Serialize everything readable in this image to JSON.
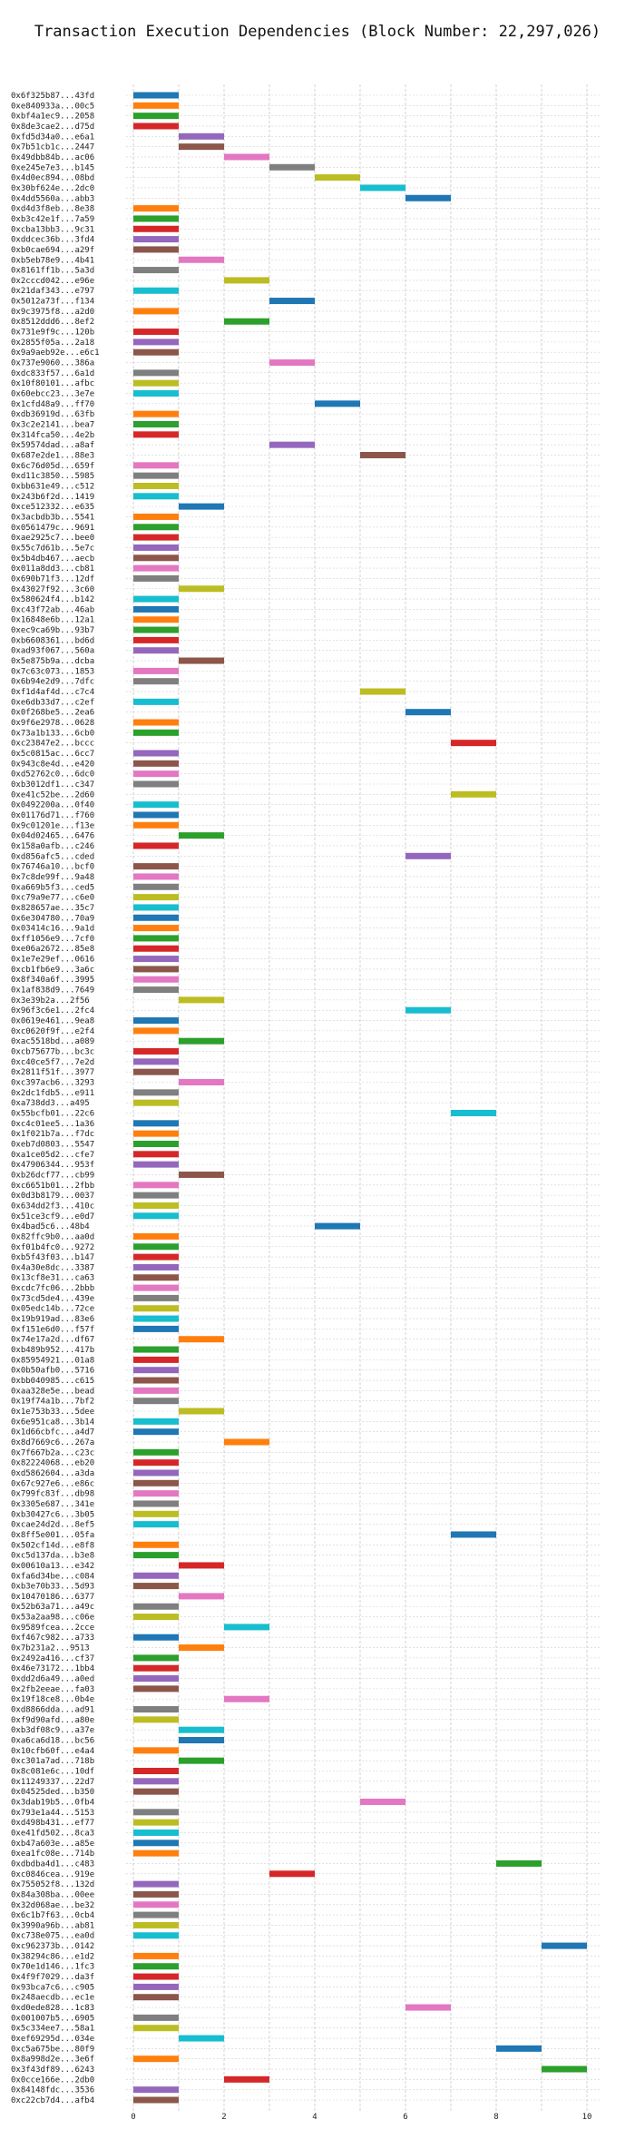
{
  "chart_data": {
    "type": "bar",
    "title": "Transaction Execution Dependencies (Block Number: 22,297,026)",
    "xlim": [
      0,
      10.3
    ],
    "xticks": [
      0,
      2,
      4,
      6,
      8,
      10
    ],
    "grid": true,
    "palette": [
      "#1f77b4",
      "#ff7f0e",
      "#2ca02c",
      "#d62728",
      "#9467bd",
      "#8c564b",
      "#e377c2",
      "#7f7f7f",
      "#bcbd22",
      "#17becf"
    ],
    "bars": [
      {
        "tx": "0x6f325b87...43fd",
        "start": 0,
        "end": 1
      },
      {
        "tx": "0xe840933a...00c5",
        "start": 0,
        "end": 1
      },
      {
        "tx": "0xbf4a1ec9...2058",
        "start": 0,
        "end": 1
      },
      {
        "tx": "0x8de3cae2...d75d",
        "start": 0,
        "end": 1
      },
      {
        "tx": "0xfd5d34a0...e6a1",
        "start": 1,
        "end": 2
      },
      {
        "tx": "0x7b51cb1c...2447",
        "start": 1,
        "end": 2
      },
      {
        "tx": "0x49dbb84b...ac06",
        "start": 2,
        "end": 3
      },
      {
        "tx": "0xe245e7e3...b145",
        "start": 3,
        "end": 4
      },
      {
        "tx": "0x4d0ec894...08bd",
        "start": 4,
        "end": 5
      },
      {
        "tx": "0x30bf624e...2dc0",
        "start": 5,
        "end": 6
      },
      {
        "tx": "0x4dd5560a...abb3",
        "start": 6,
        "end": 7
      },
      {
        "tx": "0xd4d3f8eb...8e38",
        "start": 0,
        "end": 1
      },
      {
        "tx": "0xb3c42e1f...7a59",
        "start": 0,
        "end": 1
      },
      {
        "tx": "0xcba13bb3...9c31",
        "start": 0,
        "end": 1
      },
      {
        "tx": "0xddcec36b...3fd4",
        "start": 0,
        "end": 1
      },
      {
        "tx": "0xb0cae694...a29f",
        "start": 0,
        "end": 1
      },
      {
        "tx": "0xb5eb78e9...4b41",
        "start": 1,
        "end": 2
      },
      {
        "tx": "0x8161ff1b...5a3d",
        "start": 0,
        "end": 1
      },
      {
        "tx": "0x2cccd042...e96e",
        "start": 2,
        "end": 3
      },
      {
        "tx": "0x21daf343...e797",
        "start": 0,
        "end": 1
      },
      {
        "tx": "0x5012a73f...f134",
        "start": 3,
        "end": 4
      },
      {
        "tx": "0x9c3975f8...a2d0",
        "start": 0,
        "end": 1
      },
      {
        "tx": "0x8512ddd6...8ef2",
        "start": 2,
        "end": 3
      },
      {
        "tx": "0x731e9f9c...120b",
        "start": 0,
        "end": 1
      },
      {
        "tx": "0x2855f05a...2a18",
        "start": 0,
        "end": 1
      },
      {
        "tx": "0x9a9aeb92e...e6c1",
        "start": 0,
        "end": 1
      },
      {
        "tx": "0x737e9060...386a",
        "start": 3,
        "end": 4
      },
      {
        "tx": "0xdc833f57...6a1d",
        "start": 0,
        "end": 1
      },
      {
        "tx": "0x10f80101...afbc",
        "start": 0,
        "end": 1
      },
      {
        "tx": "0x60ebcc23...3e7e",
        "start": 0,
        "end": 1
      },
      {
        "tx": "0x1cfd48a9...ff70",
        "start": 4,
        "end": 5
      },
      {
        "tx": "0xdb36919d...63fb",
        "start": 0,
        "end": 1
      },
      {
        "tx": "0x3c2e2141...bea7",
        "start": 0,
        "end": 1
      },
      {
        "tx": "0x314fca50...4e2b",
        "start": 0,
        "end": 1
      },
      {
        "tx": "0x59574dad...a8af",
        "start": 3,
        "end": 4
      },
      {
        "tx": "0x687e2de1...88e3",
        "start": 5,
        "end": 6
      },
      {
        "tx": "0x6c76d05d...659f",
        "start": 0,
        "end": 1
      },
      {
        "tx": "0xd11c3850...5985",
        "start": 0,
        "end": 1
      },
      {
        "tx": "0xbb631e49...c512",
        "start": 0,
        "end": 1
      },
      {
        "tx": "0x243b6f2d...1419",
        "start": 0,
        "end": 1
      },
      {
        "tx": "0xce512332...e635",
        "start": 1,
        "end": 2
      },
      {
        "tx": "0x3acbdb3b...5541",
        "start": 0,
        "end": 1
      },
      {
        "tx": "0x0561479c...9691",
        "start": 0,
        "end": 1
      },
      {
        "tx": "0xae2925c7...bee0",
        "start": 0,
        "end": 1
      },
      {
        "tx": "0x55c7d61b...5e7c",
        "start": 0,
        "end": 1
      },
      {
        "tx": "0x5b4db467...aecb",
        "start": 0,
        "end": 1
      },
      {
        "tx": "0x011a8dd3...cb81",
        "start": 0,
        "end": 1
      },
      {
        "tx": "0x690b71f3...12df",
        "start": 0,
        "end": 1
      },
      {
        "tx": "0x43027f92...3c60",
        "start": 1,
        "end": 2
      },
      {
        "tx": "0x580624f4...b142",
        "start": 0,
        "end": 1
      },
      {
        "tx": "0xc43f72ab...46ab",
        "start": 0,
        "end": 1
      },
      {
        "tx": "0x16848e6b...12a1",
        "start": 0,
        "end": 1
      },
      {
        "tx": "0xec9ca69b...93b7",
        "start": 0,
        "end": 1
      },
      {
        "tx": "0xb6608361...bd6d",
        "start": 0,
        "end": 1
      },
      {
        "tx": "0xad93f067...560a",
        "start": 0,
        "end": 1
      },
      {
        "tx": "0x5e875b9a...dcba",
        "start": 1,
        "end": 2
      },
      {
        "tx": "0x7c63c073...1853",
        "start": 0,
        "end": 1
      },
      {
        "tx": "0x6b94e2d9...7dfc",
        "start": 0,
        "end": 1
      },
      {
        "tx": "0xf1d4af4d...c7c4",
        "start": 5,
        "end": 6
      },
      {
        "tx": "0xe6db33d7...c2ef",
        "start": 0,
        "end": 1
      },
      {
        "tx": "0x0f268be5...2ea6",
        "start": 6,
        "end": 7
      },
      {
        "tx": "0x9f6e2978...0628",
        "start": 0,
        "end": 1
      },
      {
        "tx": "0x73a1b133...6cb0",
        "start": 0,
        "end": 1
      },
      {
        "tx": "0xc23847e2...bccc",
        "start": 7,
        "end": 8
      },
      {
        "tx": "0x5c0815ac...6cc7",
        "start": 0,
        "end": 1
      },
      {
        "tx": "0x943c8e4d...e420",
        "start": 0,
        "end": 1
      },
      {
        "tx": "0xd52762c0...6dc0",
        "start": 0,
        "end": 1
      },
      {
        "tx": "0xb3012df1...c347",
        "start": 0,
        "end": 1
      },
      {
        "tx": "0xe41c52be...2d60",
        "start": 7,
        "end": 8
      },
      {
        "tx": "0x0492200a...0f40",
        "start": 0,
        "end": 1
      },
      {
        "tx": "0x01176d71...f760",
        "start": 0,
        "end": 1
      },
      {
        "tx": "0x9c01201e...f13e",
        "start": 0,
        "end": 1
      },
      {
        "tx": "0x04d02465...6476",
        "start": 1,
        "end": 2
      },
      {
        "tx": "0x158a0afb...c246",
        "start": 0,
        "end": 1
      },
      {
        "tx": "0xd856afc5...cded",
        "start": 6,
        "end": 7
      },
      {
        "tx": "0x76746a10...bcf0",
        "start": 0,
        "end": 1
      },
      {
        "tx": "0x7c8de99f...9a48",
        "start": 0,
        "end": 1
      },
      {
        "tx": "0xa669b5f3...ced5",
        "start": 0,
        "end": 1
      },
      {
        "tx": "0xc79a9e77...c6e0",
        "start": 0,
        "end": 1
      },
      {
        "tx": "0x828657ae...35c7",
        "start": 0,
        "end": 1
      },
      {
        "tx": "0x6e304780...70a9",
        "start": 0,
        "end": 1
      },
      {
        "tx": "0x03414c16...9a1d",
        "start": 0,
        "end": 1
      },
      {
        "tx": "0xff1056e9...7cf0",
        "start": 0,
        "end": 1
      },
      {
        "tx": "0xe06a2672...85e8",
        "start": 0,
        "end": 1
      },
      {
        "tx": "0x1e7e29ef...0616",
        "start": 0,
        "end": 1
      },
      {
        "tx": "0xcb1fb6e9...3a6c",
        "start": 0,
        "end": 1
      },
      {
        "tx": "0x8f340a6f...3995",
        "start": 0,
        "end": 1
      },
      {
        "tx": "0x1af838d9...7649",
        "start": 0,
        "end": 1
      },
      {
        "tx": "0x3e39b2a...2f56",
        "start": 1,
        "end": 2
      },
      {
        "tx": "0x96f3c6e1...2fc4",
        "start": 6,
        "end": 7
      },
      {
        "tx": "0x0619e461...9ea8",
        "start": 0,
        "end": 1
      },
      {
        "tx": "0xc0620f9f...e2f4",
        "start": 0,
        "end": 1
      },
      {
        "tx": "0xac5518bd...a089",
        "start": 1,
        "end": 2
      },
      {
        "tx": "0xcb75677b...bc3c",
        "start": 0,
        "end": 1
      },
      {
        "tx": "0xc40ce5f7...7e2d",
        "start": 0,
        "end": 1
      },
      {
        "tx": "0x2811f51f...3977",
        "start": 0,
        "end": 1
      },
      {
        "tx": "0xc397acb6...3293",
        "start": 1,
        "end": 2
      },
      {
        "tx": "0x2dc1fdb5...e911",
        "start": 0,
        "end": 1
      },
      {
        "tx": "0xa738dd3...a495",
        "start": 0,
        "end": 1
      },
      {
        "tx": "0x55bcfb01...22c6",
        "start": 7,
        "end": 8
      },
      {
        "tx": "0xc4c01ee5...1a36",
        "start": 0,
        "end": 1
      },
      {
        "tx": "0x1f021b7a...f7dc",
        "start": 0,
        "end": 1
      },
      {
        "tx": "0xeb7d0803...5547",
        "start": 0,
        "end": 1
      },
      {
        "tx": "0xa1ce05d2...cfe7",
        "start": 0,
        "end": 1
      },
      {
        "tx": "0x47906344...953f",
        "start": 0,
        "end": 1
      },
      {
        "tx": "0xb26dcf77...cb99",
        "start": 1,
        "end": 2
      },
      {
        "tx": "0xc6651b01...2fbb",
        "start": 0,
        "end": 1
      },
      {
        "tx": "0x0d3b8179...0037",
        "start": 0,
        "end": 1
      },
      {
        "tx": "0x634dd2f3...410c",
        "start": 0,
        "end": 1
      },
      {
        "tx": "0x51ce3cf9...e0d7",
        "start": 0,
        "end": 1
      },
      {
        "tx": "0x4bad5c6...48b4",
        "start": 4,
        "end": 5
      },
      {
        "tx": "0x82ffc9b0...aa0d",
        "start": 0,
        "end": 1
      },
      {
        "tx": "0xf01b4fc0...9272",
        "start": 0,
        "end": 1
      },
      {
        "tx": "0xb5f43f03...b147",
        "start": 0,
        "end": 1
      },
      {
        "tx": "0x4a30e8dc...3387",
        "start": 0,
        "end": 1
      },
      {
        "tx": "0x13cf8e31...ca63",
        "start": 0,
        "end": 1
      },
      {
        "tx": "0xcdc7fc06...2bbb",
        "start": 0,
        "end": 1
      },
      {
        "tx": "0x73cd5de4...439e",
        "start": 0,
        "end": 1
      },
      {
        "tx": "0x05edc14b...72ce",
        "start": 0,
        "end": 1
      },
      {
        "tx": "0x19b919ad...83e6",
        "start": 0,
        "end": 1
      },
      {
        "tx": "0xf151e6d0...f57f",
        "start": 0,
        "end": 1
      },
      {
        "tx": "0x74e17a2d...df67",
        "start": 1,
        "end": 2
      },
      {
        "tx": "0xb489b952...417b",
        "start": 0,
        "end": 1
      },
      {
        "tx": "0x85954921...01a8",
        "start": 0,
        "end": 1
      },
      {
        "tx": "0x0b50afb0...5716",
        "start": 0,
        "end": 1
      },
      {
        "tx": "0xbb040985...c615",
        "start": 0,
        "end": 1
      },
      {
        "tx": "0xaa328e5e...bead",
        "start": 0,
        "end": 1
      },
      {
        "tx": "0x19f74a1b...7bf2",
        "start": 0,
        "end": 1
      },
      {
        "tx": "0x1e753b33...5dee",
        "start": 1,
        "end": 2
      },
      {
        "tx": "0x6e951ca8...3b14",
        "start": 0,
        "end": 1
      },
      {
        "tx": "0x1d66cbfc...a4d7",
        "start": 0,
        "end": 1
      },
      {
        "tx": "0x8d7669c6...267a",
        "start": 2,
        "end": 3
      },
      {
        "tx": "0x7f667b2a...c23c",
        "start": 0,
        "end": 1
      },
      {
        "tx": "0x82224068...eb20",
        "start": 0,
        "end": 1
      },
      {
        "tx": "0xd5862604...a3da",
        "start": 0,
        "end": 1
      },
      {
        "tx": "0x67c927e6...e86c",
        "start": 0,
        "end": 1
      },
      {
        "tx": "0x799fc83f...db98",
        "start": 0,
        "end": 1
      },
      {
        "tx": "0x3305e687...341e",
        "start": 0,
        "end": 1
      },
      {
        "tx": "0xb30427c6...3b05",
        "start": 0,
        "end": 1
      },
      {
        "tx": "0xcae24d2d...8ef5",
        "start": 0,
        "end": 1
      },
      {
        "tx": "0x8ff5e001...05fa",
        "start": 7,
        "end": 8
      },
      {
        "tx": "0x502cf14d...e8f8",
        "start": 0,
        "end": 1
      },
      {
        "tx": "0xc5d137da...b3e8",
        "start": 0,
        "end": 1
      },
      {
        "tx": "0x00610a13...e342",
        "start": 1,
        "end": 2
      },
      {
        "tx": "0xfa6d34be...c084",
        "start": 0,
        "end": 1
      },
      {
        "tx": "0xb3e70b33...5d93",
        "start": 0,
        "end": 1
      },
      {
        "tx": "0x10470186...6377",
        "start": 1,
        "end": 2
      },
      {
        "tx": "0x52b63a71...a49c",
        "start": 0,
        "end": 1
      },
      {
        "tx": "0x53a2aa98...c06e",
        "start": 0,
        "end": 1
      },
      {
        "tx": "0x9589fcea...2cce",
        "start": 2,
        "end": 3
      },
      {
        "tx": "0xf467c982...a733",
        "start": 0,
        "end": 1
      },
      {
        "tx": "0x7b231a2...9513",
        "start": 1,
        "end": 2
      },
      {
        "tx": "0x2492a416...cf37",
        "start": 0,
        "end": 1
      },
      {
        "tx": "0x46e73172...1bb4",
        "start": 0,
        "end": 1
      },
      {
        "tx": "0xdd2d6a49...a0ed",
        "start": 0,
        "end": 1
      },
      {
        "tx": "0x2fb2eeae...fa03",
        "start": 0,
        "end": 1
      },
      {
        "tx": "0x19f18ce8...0b4e",
        "start": 2,
        "end": 3
      },
      {
        "tx": "0xd8866dda...ad91",
        "start": 0,
        "end": 1
      },
      {
        "tx": "0xf9d90afd...a80e",
        "start": 0,
        "end": 1
      },
      {
        "tx": "0xb3df08c9...a37e",
        "start": 1,
        "end": 2
      },
      {
        "tx": "0xa6ca6d18...bc56",
        "start": 1,
        "end": 2
      },
      {
        "tx": "0x10cfb60f...e4a4",
        "start": 0,
        "end": 1
      },
      {
        "tx": "0xc301a7ad...718b",
        "start": 1,
        "end": 2
      },
      {
        "tx": "0x8c081e6c...10df",
        "start": 0,
        "end": 1
      },
      {
        "tx": "0x11249337...22d7",
        "start": 0,
        "end": 1
      },
      {
        "tx": "0x04525ded...b350",
        "start": 0,
        "end": 1
      },
      {
        "tx": "0x3dab19b5...0fb4",
        "start": 5,
        "end": 6
      },
      {
        "tx": "0x793e1a44...5153",
        "start": 0,
        "end": 1
      },
      {
        "tx": "0xd498b431...ef77",
        "start": 0,
        "end": 1
      },
      {
        "tx": "0xe41fd502...8ca3",
        "start": 0,
        "end": 1
      },
      {
        "tx": "0xb47a603e...a85e",
        "start": 0,
        "end": 1
      },
      {
        "tx": "0xea1fc08e...714b",
        "start": 0,
        "end": 1
      },
      {
        "tx": "0xdbdba4d1...c483",
        "start": 8,
        "end": 9
      },
      {
        "tx": "0xc0846cea...919e",
        "start": 3,
        "end": 4
      },
      {
        "tx": "0x755052f8...132d",
        "start": 0,
        "end": 1
      },
      {
        "tx": "0x84a308ba...00ee",
        "start": 0,
        "end": 1
      },
      {
        "tx": "0x32d068ae...be32",
        "start": 0,
        "end": 1
      },
      {
        "tx": "0x6c1b7f63...0cb4",
        "start": 0,
        "end": 1
      },
      {
        "tx": "0x3990a96b...ab81",
        "start": 0,
        "end": 1
      },
      {
        "tx": "0xc738e075...ea0d",
        "start": 0,
        "end": 1
      },
      {
        "tx": "0xc962373b...0142",
        "start": 9,
        "end": 10
      },
      {
        "tx": "0x38294c86...e1d2",
        "start": 0,
        "end": 1
      },
      {
        "tx": "0x70e1d146...1fc3",
        "start": 0,
        "end": 1
      },
      {
        "tx": "0x4f9f7029...da3f",
        "start": 0,
        "end": 1
      },
      {
        "tx": "0x93bca7c6...c905",
        "start": 0,
        "end": 1
      },
      {
        "tx": "0x248aecdb...ec1e",
        "start": 0,
        "end": 1
      },
      {
        "tx": "0xd0ede828...1c83",
        "start": 6,
        "end": 7
      },
      {
        "tx": "0x001007b5...6905",
        "start": 0,
        "end": 1
      },
      {
        "tx": "0x5c334ee7...58a1",
        "start": 0,
        "end": 1
      },
      {
        "tx": "0xef69295d...034e",
        "start": 1,
        "end": 2
      },
      {
        "tx": "0xc5a675be...80f9",
        "start": 8,
        "end": 9
      },
      {
        "tx": "0x8a998d2e...3e6f",
        "start": 0,
        "end": 1
      },
      {
        "tx": "0x3f43df89...6243",
        "start": 9,
        "end": 10
      },
      {
        "tx": "0x0cce166e...2db0",
        "start": 2,
        "end": 3
      },
      {
        "tx": "0x84148fdc...3536",
        "start": 0,
        "end": 1
      },
      {
        "tx": "0xc22cb7d4...afb4",
        "start": 0,
        "end": 1
      }
    ]
  }
}
